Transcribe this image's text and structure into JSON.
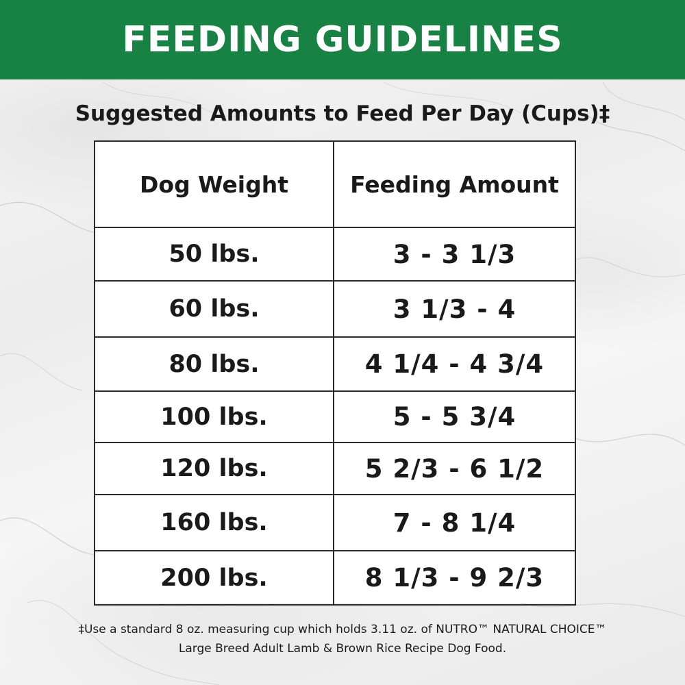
{
  "banner": {
    "title": "FEEDING GUIDELINES"
  },
  "subtitle": "Suggested Amounts to Feed Per Day (Cups)‡",
  "table": {
    "headers": [
      "Dog Weight",
      "Feeding Amount"
    ],
    "rows": [
      {
        "weight": "50 lbs.",
        "amount": "3 - 3 1/3"
      },
      {
        "weight": "60 lbs.",
        "amount": "3 1/3 - 4"
      },
      {
        "weight": "80 lbs.",
        "amount": "4 1/4 - 4 3/4"
      },
      {
        "weight": "100 lbs.",
        "amount": "5 - 5 3/4"
      },
      {
        "weight": "120 lbs.",
        "amount": "5 2/3 - 6 1/2"
      },
      {
        "weight": "160 lbs.",
        "amount": "7 - 8 1/4"
      },
      {
        "weight": "200 lbs.",
        "amount": "8 1/3 - 9 2/3"
      }
    ]
  },
  "footnote": {
    "line1": "‡Use a standard 8 oz. measuring cup which holds 3.11 oz. of NUTRO™ NATURAL CHOICE™",
    "line2": "Large Breed Adult Lamb & Brown Rice Recipe Dog Food."
  },
  "colors": {
    "banner": "#178243",
    "text": "#1a1a1a",
    "table_border": "#2a2a2a"
  }
}
